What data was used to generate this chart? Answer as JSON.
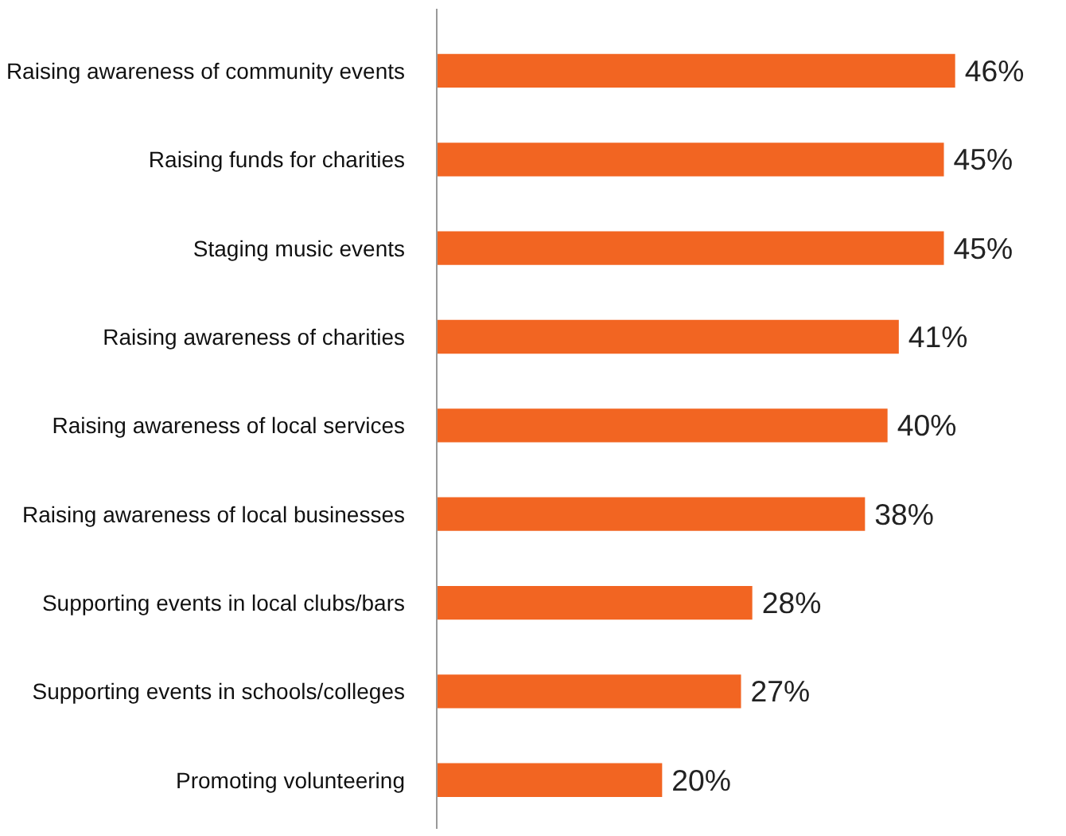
{
  "chart_data": {
    "type": "bar",
    "orientation": "horizontal",
    "categories": [
      "Raising awareness of community events",
      "Raising funds for charities",
      "Staging music events",
      "Raising awareness of charities",
      "Raising awareness of local services",
      "Raising awareness of local businesses",
      "Supporting events in local clubs/bars",
      "Supporting events in schools/colleges",
      "Promoting volunteering"
    ],
    "values": [
      46,
      45,
      45,
      41,
      40,
      38,
      28,
      27,
      20
    ],
    "value_labels": [
      "46%",
      "45%",
      "45%",
      "41%",
      "40%",
      "38%",
      "28%",
      "27%",
      "20%"
    ],
    "color": "#f26522",
    "grid": false,
    "tick_labels": "y"
  }
}
